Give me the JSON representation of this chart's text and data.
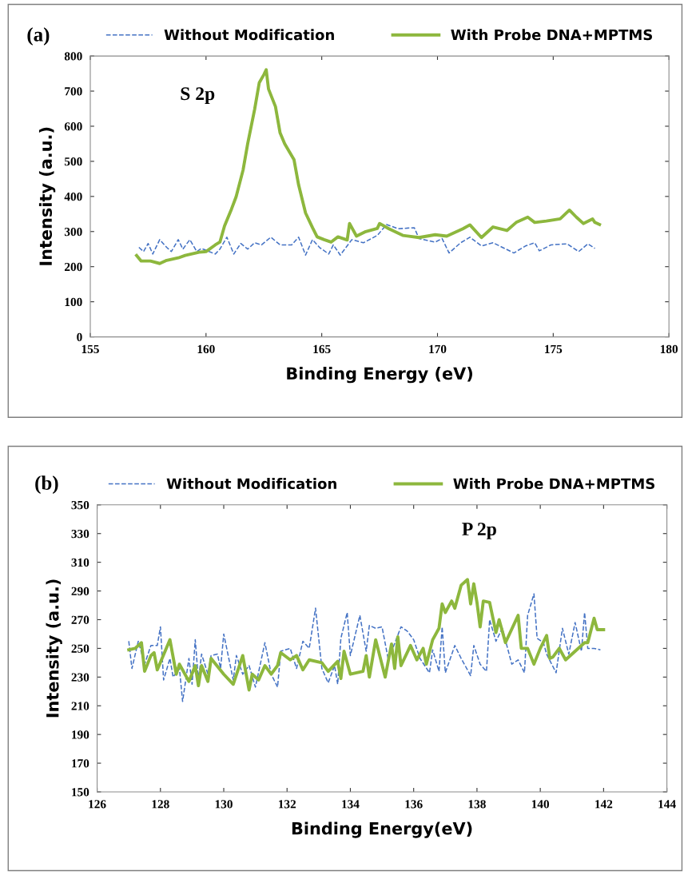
{
  "chart_data": [
    {
      "type": "line",
      "title": "(a)",
      "xlabel": "Binding Energy (eV)",
      "ylabel": "Intensity (a.u.)",
      "xlim": [
        155,
        180
      ],
      "xticks": [
        155,
        160,
        165,
        170,
        175,
        180
      ],
      "ylim": [
        0,
        800
      ],
      "yticks": [
        0,
        100,
        200,
        300,
        400,
        500,
        600,
        700,
        800
      ],
      "grid": false,
      "legend": "top",
      "marker": "none",
      "annotations": [
        "S 2p"
      ],
      "series": [
        {
          "name": "Without Modification",
          "color": "#4472c4",
          "line_style": "dashed",
          "x": [
            157.1,
            157.3,
            157.5,
            157.7,
            158.0,
            158.3,
            158.5,
            158.8,
            159.0,
            159.3,
            159.6,
            159.8,
            160.4,
            160.6,
            160.9,
            161.2,
            161.5,
            161.8,
            162.1,
            162.4,
            162.8,
            163.2,
            163.7,
            164.0,
            164.3,
            164.6,
            164.9,
            165.3,
            165.5,
            165.8,
            166.3,
            166.8,
            167.4,
            167.8,
            168.3,
            169.0,
            169.2,
            169.9,
            170.2,
            170.5,
            171.0,
            171.4,
            171.9,
            172.4,
            173.3,
            173.8,
            174.2,
            174.4,
            174.9,
            175.6,
            176.1,
            176.5,
            176.8
          ],
          "values": [
            255,
            243,
            266,
            236,
            277,
            255,
            243,
            277,
            250,
            277,
            243,
            252,
            236,
            250,
            284,
            236,
            266,
            250,
            268,
            262,
            284,
            262,
            262,
            284,
            233,
            277,
            255,
            236,
            262,
            233,
            277,
            268,
            289,
            320,
            308,
            311,
            280,
            270,
            280,
            239,
            268,
            284,
            259,
            268,
            239,
            259,
            268,
            245,
            262,
            265,
            243,
            265,
            252
          ]
        },
        {
          "name": "With Probe DNA+MPTMS",
          "color": "#8db73d",
          "line_style": "solid",
          "x": [
            157.0,
            157.2,
            157.6,
            158.0,
            158.3,
            158.8,
            159.1,
            159.7,
            160.0,
            160.4,
            160.6,
            160.8,
            161.1,
            161.3,
            161.6,
            161.8,
            162.1,
            162.3,
            162.5,
            162.6,
            162.7,
            163.0,
            163.2,
            163.4,
            163.8,
            164.0,
            164.3,
            164.6,
            164.8,
            165.1,
            165.4,
            165.7,
            166.1,
            166.2,
            166.5,
            166.9,
            167.4,
            167.5,
            167.9,
            168.5,
            169.2,
            169.9,
            170.4,
            171.1,
            171.4,
            171.9,
            172.4,
            173.0,
            173.4,
            173.9,
            174.2,
            174.7,
            175.3,
            175.7,
            176.0,
            176.3,
            176.7,
            176.8,
            177.0
          ],
          "values": [
            232,
            216,
            216,
            209,
            218,
            225,
            232,
            241,
            243,
            262,
            270,
            316,
            364,
            399,
            475,
            550,
            648,
            724,
            747,
            761,
            706,
            656,
            581,
            550,
            505,
            433,
            353,
            311,
            285,
            277,
            270,
            285,
            276,
            323,
            287,
            300,
            309,
            323,
            308,
            289,
            283,
            291,
            287,
            308,
            319,
            283,
            313,
            303,
            326,
            341,
            326,
            330,
            336,
            361,
            341,
            323,
            336,
            326,
            320
          ]
        }
      ]
    },
    {
      "type": "line",
      "title": "(b)",
      "xlabel": "Binding Energy(eV)",
      "ylabel": "Intensity (a.u.)",
      "xlim": [
        126,
        144
      ],
      "xticks": [
        126,
        128,
        130,
        132,
        134,
        136,
        138,
        140,
        142,
        144
      ],
      "ylim": [
        150,
        350
      ],
      "yticks": [
        150,
        170,
        190,
        210,
        230,
        250,
        270,
        290,
        310,
        330,
        350
      ],
      "grid": false,
      "legend": "top",
      "marker": "none",
      "annotations": [
        "P 2p"
      ],
      "series": [
        {
          "name": "Without Modification",
          "color": "#4472c4",
          "line_style": "dashed",
          "x": [
            127.0,
            127.1,
            127.3,
            127.5,
            127.7,
            127.9,
            128.0,
            128.1,
            128.3,
            128.4,
            128.6,
            128.7,
            128.9,
            129.0,
            129.1,
            129.2,
            129.3,
            129.5,
            129.6,
            129.8,
            129.9,
            130.0,
            130.3,
            130.4,
            130.6,
            130.8,
            131.0,
            131.3,
            131.5,
            131.7,
            131.8,
            132.1,
            132.3,
            132.5,
            132.7,
            132.9,
            133.1,
            133.3,
            133.5,
            133.6,
            133.7,
            133.9,
            134.0,
            134.3,
            134.5,
            134.6,
            134.8,
            135.0,
            135.2,
            135.6,
            135.8,
            136.0,
            136.2,
            136.5,
            136.6,
            136.8,
            136.9,
            137.0,
            137.3,
            137.5,
            137.8,
            137.9,
            138.1,
            138.3,
            138.4,
            138.6,
            138.8,
            139.1,
            139.3,
            139.5,
            139.6,
            139.8,
            139.9,
            140.1,
            140.2,
            140.5,
            140.7,
            140.9,
            141.1,
            141.3,
            141.4,
            141.5,
            141.7,
            141.9
          ],
          "values": [
            255,
            236,
            255,
            239,
            252,
            252,
            265,
            228,
            243,
            230,
            236,
            213,
            243,
            225,
            256,
            228,
            246,
            232,
            245,
            246,
            236,
            260,
            228,
            245,
            232,
            238,
            223,
            254,
            232,
            223,
            248,
            250,
            236,
            255,
            250,
            278,
            236,
            226,
            238,
            225,
            257,
            275,
            245,
            273,
            248,
            266,
            264,
            265,
            242,
            265,
            262,
            256,
            243,
            233,
            249,
            234,
            265,
            233,
            252,
            243,
            231,
            252,
            239,
            234,
            270,
            255,
            264,
            239,
            242,
            233,
            273,
            288,
            257,
            254,
            246,
            233,
            264,
            246,
            268,
            248,
            275,
            250,
            250,
            249
          ]
        },
        {
          "name": "With Probe DNA+MPTMS",
          "color": "#8db73d",
          "line_style": "solid",
          "x": [
            127.0,
            127.2,
            127.4,
            127.5,
            127.7,
            127.8,
            127.9,
            128.3,
            128.5,
            128.6,
            128.9,
            129.1,
            129.2,
            129.3,
            129.5,
            129.6,
            130.0,
            130.3,
            130.6,
            130.8,
            130.9,
            131.1,
            131.3,
            131.5,
            131.7,
            131.8,
            132.1,
            132.3,
            132.5,
            132.7,
            133.1,
            133.3,
            133.6,
            133.7,
            133.8,
            134.0,
            134.4,
            134.5,
            134.6,
            134.8,
            135.1,
            135.3,
            135.4,
            135.5,
            135.6,
            135.9,
            136.1,
            136.3,
            136.4,
            136.6,
            136.8,
            136.9,
            137.0,
            137.2,
            137.3,
            137.5,
            137.7,
            137.8,
            137.9,
            138.0,
            138.1,
            138.2,
            138.4,
            138.6,
            138.7,
            138.9,
            139.3,
            139.4,
            139.6,
            139.8,
            140.0,
            140.2,
            140.3,
            140.4,
            140.6,
            140.8,
            141.1,
            141.4,
            141.5,
            141.7,
            141.8,
            142.0
          ],
          "values": [
            249,
            250,
            254,
            234,
            245,
            247,
            235,
            256,
            232,
            239,
            227,
            238,
            224,
            238,
            227,
            243,
            232,
            225,
            245,
            221,
            232,
            228,
            238,
            232,
            238,
            247,
            242,
            245,
            235,
            242,
            240,
            234,
            241,
            229,
            248,
            232,
            234,
            245,
            230,
            256,
            230,
            253,
            236,
            258,
            238,
            252,
            242,
            250,
            239,
            256,
            264,
            281,
            275,
            283,
            278,
            294,
            298,
            281,
            295,
            282,
            265,
            283,
            282,
            261,
            270,
            254,
            273,
            250,
            250,
            239,
            250,
            259,
            243,
            244,
            250,
            242,
            248,
            254,
            254,
            271,
            263,
            263
          ]
        }
      ]
    }
  ]
}
